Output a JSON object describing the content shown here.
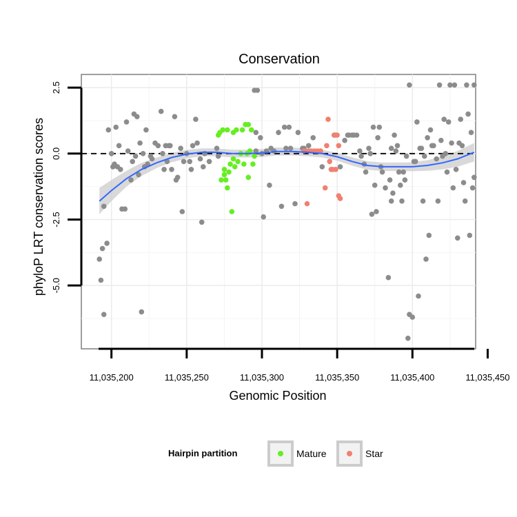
{
  "chart_data": {
    "type": "scatter",
    "title": "Conservation",
    "xlabel": "Genomic Position",
    "ylabel": "phyloP LRT conservation scores",
    "xlim": [
      11035180,
      11035442
    ],
    "ylim": [
      -7.4,
      3.0
    ],
    "x_ticks": [
      11035200,
      11035250,
      11035300,
      11035350,
      11035400,
      11035450
    ],
    "x_tick_labels": [
      "11,035,200",
      "11,035,250",
      "11,035,300",
      "11,035,350",
      "11,035,400",
      "11,035,450"
    ],
    "y_ticks": [
      2.5,
      0.0,
      -2.5,
      -5.0
    ],
    "y_tick_labels": [
      "2.5",
      "0.0",
      "-2.5",
      "-5.0"
    ],
    "reference_line": 0,
    "grid": true,
    "legend": {
      "title": "Hairpin partition",
      "placement": "bottom",
      "items": [
        {
          "label": "Mature",
          "color": "#66ee22"
        },
        {
          "label": "Star",
          "color": "#f08070"
        }
      ]
    },
    "colors": {
      "other": "#8c8c8c",
      "Mature": "#66ee22",
      "Star": "#f08070",
      "smooth": "#3366ff",
      "band": "#cccccc"
    },
    "series": [
      {
        "group": "other",
        "points": [
          [
            11035192,
            -4.0
          ],
          [
            11035193,
            -4.8
          ],
          [
            11035194,
            -3.6
          ],
          [
            11035195,
            -6.1
          ],
          [
            11035195,
            -2.0
          ],
          [
            11035197,
            -3.4
          ],
          [
            11035198,
            0.9
          ],
          [
            11035200,
            0.0
          ],
          [
            11035201,
            -0.5
          ],
          [
            11035202,
            -0.4
          ],
          [
            11035203,
            1.0
          ],
          [
            11035204,
            -0.5
          ],
          [
            11035205,
            0.3
          ],
          [
            11035206,
            -0.6
          ],
          [
            11035207,
            -2.1
          ],
          [
            11035209,
            -2.1
          ],
          [
            11035210,
            1.2
          ],
          [
            11035211,
            0.1
          ],
          [
            11035213,
            -1.0
          ],
          [
            11035214,
            -0.3
          ],
          [
            11035215,
            1.5
          ],
          [
            11035216,
            -0.1
          ],
          [
            11035217,
            1.4
          ],
          [
            11035218,
            -0.8
          ],
          [
            11035219,
            0.4
          ],
          [
            11035220,
            -6.0
          ],
          [
            11035221,
            0.0
          ],
          [
            11035222,
            -0.5
          ],
          [
            11035223,
            0.9
          ],
          [
            11035224,
            -0.4
          ],
          [
            11035226,
            -0.1
          ],
          [
            11035227,
            -0.2
          ],
          [
            11035229,
            0.4
          ],
          [
            11035231,
            0.3
          ],
          [
            11035233,
            1.6
          ],
          [
            11035234,
            0.0
          ],
          [
            11035235,
            -0.6
          ],
          [
            11035236,
            0.3
          ],
          [
            11035237,
            -0.3
          ],
          [
            11035238,
            0.3
          ],
          [
            11035239,
            0.3
          ],
          [
            11035240,
            -0.6
          ],
          [
            11035242,
            1.4
          ],
          [
            11035243,
            -1.0
          ],
          [
            11035244,
            -0.9
          ],
          [
            11035246,
            0.2
          ],
          [
            11035247,
            -2.2
          ],
          [
            11035248,
            -0.3
          ],
          [
            11035250,
            0.0
          ],
          [
            11035252,
            -0.3
          ],
          [
            11035253,
            -0.6
          ],
          [
            11035254,
            0.3
          ],
          [
            11035256,
            1.3
          ],
          [
            11035257,
            0.4
          ],
          [
            11035259,
            -0.2
          ],
          [
            11035260,
            -2.6
          ],
          [
            11035261,
            -0.5
          ],
          [
            11035262,
            0.0
          ],
          [
            11035265,
            -0.3
          ],
          [
            11035270,
            0.2
          ],
          [
            11035271,
            -0.1
          ],
          [
            11035295,
            2.4
          ],
          [
            11035297,
            2.4
          ],
          [
            11035296,
            0.8
          ],
          [
            11035296,
            0.1
          ],
          [
            11035299,
            0.6
          ],
          [
            11035300,
            0.0
          ],
          [
            11035301,
            -2.4
          ],
          [
            11035303,
            0.1
          ],
          [
            11035305,
            -1.2
          ],
          [
            11035306,
            0.2
          ],
          [
            11035308,
            0.1
          ],
          [
            11035311,
            0.8
          ],
          [
            11035313,
            -2.0
          ],
          [
            11035315,
            1.0
          ],
          [
            11035316,
            0.2
          ],
          [
            11035318,
            1.0
          ],
          [
            11035319,
            0.2
          ],
          [
            11035322,
            -1.9
          ],
          [
            11035324,
            0.8
          ],
          [
            11035327,
            0.2
          ],
          [
            11035328,
            0.2
          ],
          [
            11035331,
            0.3
          ],
          [
            11035334,
            0.6
          ],
          [
            11035340,
            -0.5
          ],
          [
            11035348,
            0.7
          ],
          [
            11035349,
            0.7
          ],
          [
            11035352,
            -0.5
          ],
          [
            11035355,
            0.5
          ],
          [
            11035357,
            0.7
          ],
          [
            11035358,
            0.7
          ],
          [
            11035360,
            0.7
          ],
          [
            11035361,
            0.7
          ],
          [
            11035363,
            0.7
          ],
          [
            11035365,
            0.1
          ],
          [
            11035366,
            -0.1
          ],
          [
            11035368,
            -0.4
          ],
          [
            11035369,
            -0.7
          ],
          [
            11035371,
            0.2
          ],
          [
            11035372,
            0.0
          ],
          [
            11035373,
            -2.3
          ],
          [
            11035374,
            1.0
          ],
          [
            11035375,
            -1.2
          ],
          [
            11035376,
            -2.2
          ],
          [
            11035377,
            0.6
          ],
          [
            11035378,
            1.0
          ],
          [
            11035379,
            -0.5
          ],
          [
            11035380,
            -0.7
          ],
          [
            11035382,
            -1.3
          ],
          [
            11035384,
            -4.7
          ],
          [
            11035385,
            -1.0
          ],
          [
            11035386,
            0.2
          ],
          [
            11035386,
            -1.8
          ],
          [
            11035387,
            -1.5
          ],
          [
            11035388,
            0.7
          ],
          [
            11035389,
            0.1
          ],
          [
            11035390,
            0.3
          ],
          [
            11035391,
            -0.7
          ],
          [
            11035392,
            -1.2
          ],
          [
            11035393,
            -1.8
          ],
          [
            11035394,
            -0.7
          ],
          [
            11035395,
            -1.0
          ],
          [
            11035396,
            -0.1
          ],
          [
            11035397,
            -7.0
          ],
          [
            11035398,
            2.6
          ],
          [
            11035398,
            -6.1
          ],
          [
            11035400,
            -6.2
          ],
          [
            11035401,
            -0.3
          ],
          [
            11035402,
            -0.3
          ],
          [
            11035403,
            1.2
          ],
          [
            11035404,
            -5.4
          ],
          [
            11035405,
            0.2
          ],
          [
            11035406,
            0.2
          ],
          [
            11035407,
            -1.8
          ],
          [
            11035408,
            -0.1
          ],
          [
            11035409,
            -4.0
          ],
          [
            11035410,
            0.6
          ],
          [
            11035411,
            -3.1
          ],
          [
            11035412,
            0.9
          ],
          [
            11035413,
            0.3
          ],
          [
            11035414,
            0.3
          ],
          [
            11035416,
            -0.2
          ],
          [
            11035417,
            -1.8
          ],
          [
            11035418,
            2.6
          ],
          [
            11035419,
            0.5
          ],
          [
            11035420,
            -0.1
          ],
          [
            11035421,
            1.3
          ],
          [
            11035422,
            0.0
          ],
          [
            11035423,
            -0.7
          ],
          [
            11035424,
            1.2
          ],
          [
            11035425,
            2.6
          ],
          [
            11035426,
            0.4
          ],
          [
            11035427,
            -1.3
          ],
          [
            11035428,
            2.6
          ],
          [
            11035429,
            -0.6
          ],
          [
            11035430,
            -3.2
          ],
          [
            11035431,
            0.4
          ],
          [
            11035432,
            1.3
          ],
          [
            11035433,
            0.3
          ],
          [
            11035434,
            -1.1
          ],
          [
            11035435,
            -1.8
          ],
          [
            11035436,
            2.6
          ],
          [
            11035437,
            1.5
          ],
          [
            11035438,
            -3.1
          ],
          [
            11035439,
            0.8
          ],
          [
            11035440,
            -1.3
          ],
          [
            11035441,
            2.6
          ],
          [
            11035441,
            -0.9
          ]
        ]
      },
      {
        "group": "Mature",
        "points": [
          [
            11035271,
            0.7
          ],
          [
            11035272,
            0.8
          ],
          [
            11035273,
            -1.0
          ],
          [
            11035274,
            0.9
          ],
          [
            11035275,
            -0.8
          ],
          [
            11035275,
            -0.6
          ],
          [
            11035276,
            -1.0
          ],
          [
            11035277,
            -1.3
          ],
          [
            11035277,
            0.9
          ],
          [
            11035278,
            -0.7
          ],
          [
            11035279,
            -0.4
          ],
          [
            11035280,
            -2.2
          ],
          [
            11035281,
            -0.2
          ],
          [
            11035281,
            0.8
          ],
          [
            11035282,
            -0.5
          ],
          [
            11035283,
            0.9
          ],
          [
            11035284,
            -0.3
          ],
          [
            11035286,
            0.0
          ],
          [
            11035287,
            0.9
          ],
          [
            11035288,
            -0.4
          ],
          [
            11035289,
            1.1
          ],
          [
            11035290,
            0.0
          ],
          [
            11035291,
            1.1
          ],
          [
            11035291,
            -0.9
          ],
          [
            11035292,
            0.1
          ],
          [
            11035293,
            0.9
          ],
          [
            11035294,
            -0.4
          ],
          [
            11035295,
            -0.1
          ]
        ]
      },
      {
        "group": "Star",
        "points": [
          [
            11035328,
            0.1
          ],
          [
            11035330,
            -1.9
          ],
          [
            11035331,
            0.1
          ],
          [
            11035333,
            0.1
          ],
          [
            11035335,
            0.1
          ],
          [
            11035337,
            0.1
          ],
          [
            11035339,
            0.1
          ],
          [
            11035342,
            -1.3
          ],
          [
            11035343,
            0.3
          ],
          [
            11035344,
            1.3
          ],
          [
            11035345,
            -0.3
          ],
          [
            11035346,
            -0.6
          ],
          [
            11035347,
            -0.6
          ],
          [
            11035348,
            0.7
          ],
          [
            11035349,
            -0.6
          ],
          [
            11035350,
            0.7
          ],
          [
            11035351,
            0.3
          ],
          [
            11035351,
            -1.6
          ],
          [
            11035352,
            -1.7
          ]
        ]
      }
    ],
    "smooth": {
      "x": [
        11035192,
        11035200,
        11035210,
        11035220,
        11035230,
        11035240,
        11035250,
        11035260,
        11035270,
        11035280,
        11035290,
        11035300,
        11035310,
        11035320,
        11035330,
        11035340,
        11035350,
        11035360,
        11035370,
        11035380,
        11035390,
        11035400,
        11035410,
        11035420,
        11035430,
        11035441
      ],
      "y": [
        -1.8,
        -1.4,
        -0.95,
        -0.6,
        -0.35,
        -0.15,
        -0.02,
        0.05,
        0.05,
        0.0,
        0.0,
        0.02,
        0.08,
        0.08,
        0.05,
        0.0,
        -0.12,
        -0.3,
        -0.45,
        -0.5,
        -0.5,
        -0.5,
        -0.45,
        -0.35,
        -0.2,
        0.05
      ],
      "se": [
        0.5,
        0.4,
        0.3,
        0.25,
        0.2,
        0.18,
        0.16,
        0.15,
        0.15,
        0.15,
        0.15,
        0.15,
        0.15,
        0.15,
        0.15,
        0.15,
        0.15,
        0.16,
        0.16,
        0.16,
        0.16,
        0.17,
        0.2,
        0.25,
        0.3,
        0.35
      ]
    }
  }
}
